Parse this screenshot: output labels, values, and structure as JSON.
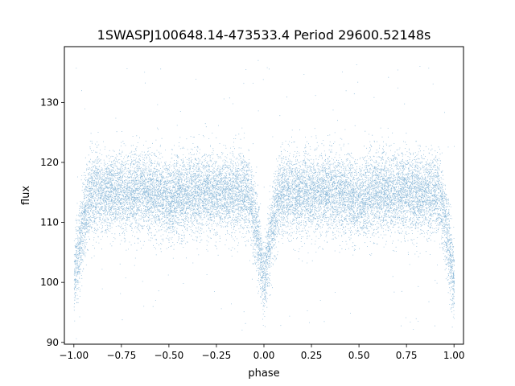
{
  "chart_data": {
    "type": "scatter",
    "title": "1SWASPJ100648.14-473533.4 Period 29600.52148s",
    "xlabel": "phase",
    "ylabel": "flux",
    "xlim": [
      -1.05,
      1.05
    ],
    "ylim": [
      89.7,
      139.3
    ],
    "xticks": [
      -1.0,
      -0.75,
      -0.5,
      -0.25,
      0.0,
      0.25,
      0.5,
      0.75,
      1.0
    ],
    "xtick_labels": [
      "−1.00",
      "−0.75",
      "−0.50",
      "−0.25",
      "0.00",
      "0.25",
      "0.50",
      "0.75",
      "1.00"
    ],
    "yticks": [
      90,
      100,
      110,
      120,
      130
    ],
    "ytick_labels": [
      "90",
      "100",
      "110",
      "120",
      "130"
    ],
    "grid": false,
    "legend": "none",
    "marker_color": "#1f77b4",
    "series": [
      {
        "phase_range": [
          -1.0,
          1.0
        ],
        "baseline_flux": 115.0,
        "scatter_sigma": 3.3,
        "primary_eclipse": {
          "phase": 0.0,
          "min_flux": 100.0,
          "half_width_phase": 0.09
        },
        "secondary_eclipse": {
          "phase": 0.5,
          "min_flux": 113.5,
          "half_width_phase": 0.09
        },
        "eclipse_repeats_at_phase": [
          -1.0,
          1.0
        ],
        "outlier_range": [
          92.0,
          137.5
        ],
        "point_count": 60000
      }
    ]
  }
}
